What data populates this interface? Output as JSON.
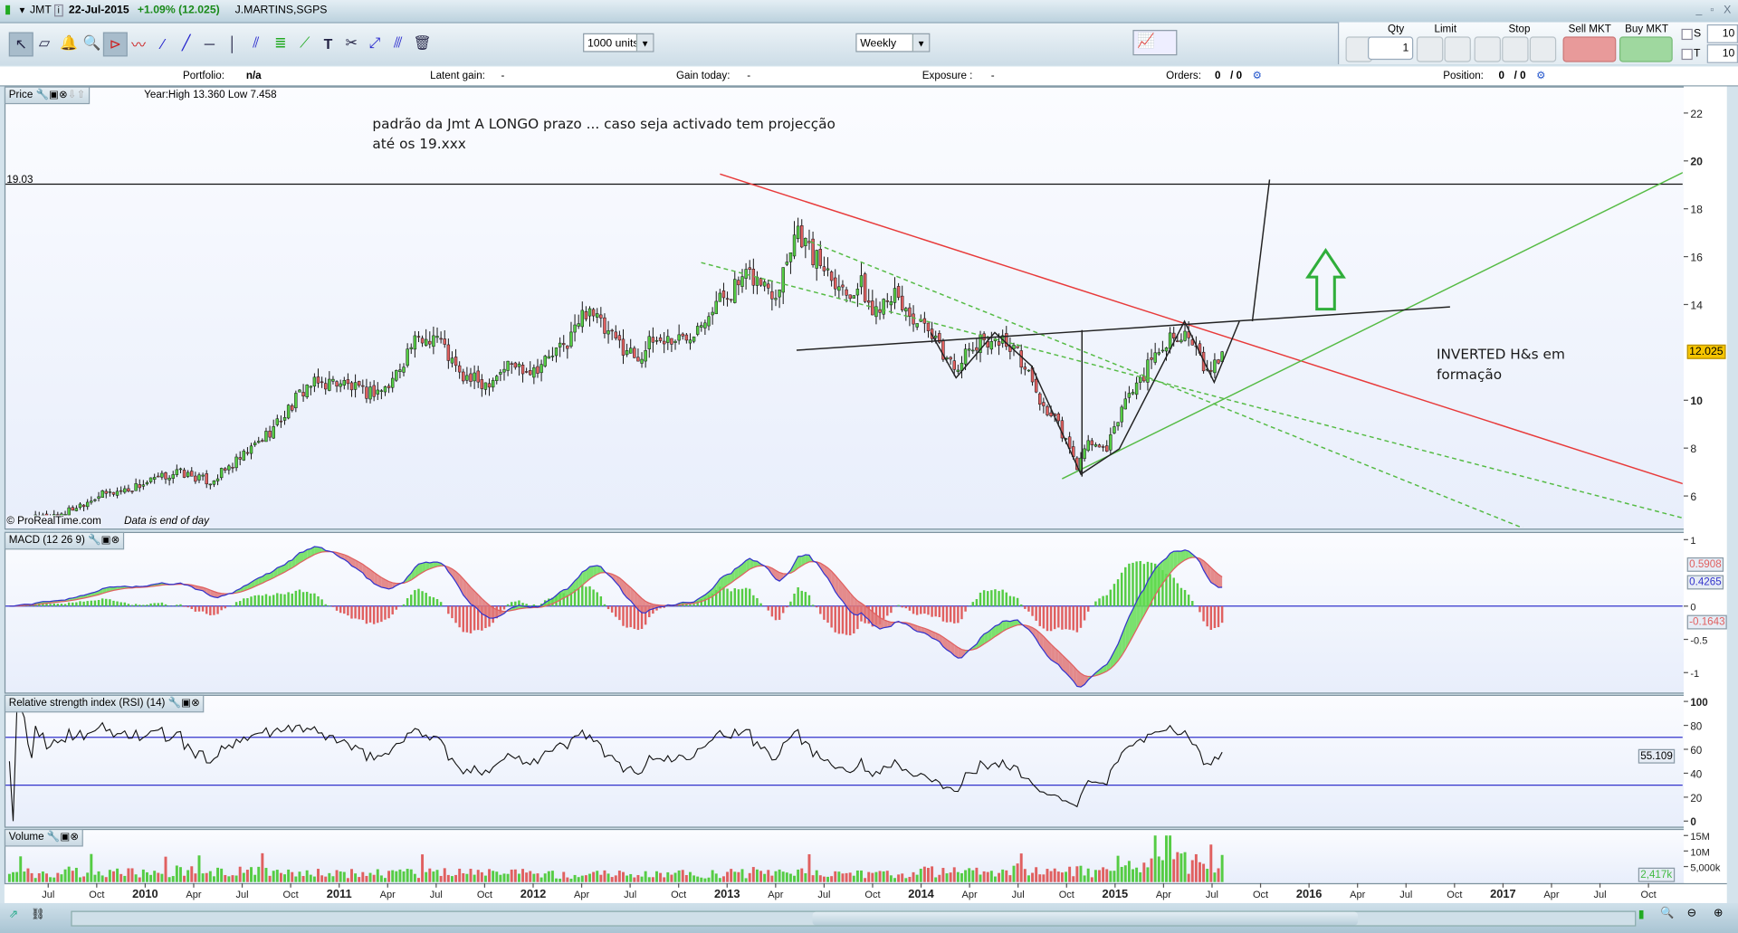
{
  "window": {
    "symbol": "JMT",
    "date": "22-Jul-2015",
    "change": "+1.09% (12.025)",
    "name": "J.MARTINS,SGPS",
    "minimize": "_",
    "restore": "▫",
    "close": "X"
  },
  "toolbar": {
    "units": "1000 units",
    "period": "Weekly"
  },
  "trade": {
    "qty_label": "Qty",
    "qty": "1",
    "limit_label": "Limit",
    "stop_label": "Stop",
    "sell_label": "Sell MKT",
    "buy_label": "Buy MKT",
    "s_label": "S",
    "s_value": "10",
    "t_label": "T",
    "t_value": "10"
  },
  "info": {
    "portfolio_label": "Portfolio:",
    "portfolio": "n/a",
    "latent_label": "Latent gain:",
    "latent": "-",
    "gain_label": "Gain today:",
    "gain": "-",
    "exposure_label": "Exposure :",
    "exposure": "-",
    "orders_label": "Orders:",
    "orders": "0",
    "orders_sep": "/ 0",
    "position_label": "Position:",
    "position": "0",
    "position_sep": "/ 0"
  },
  "price_panel": {
    "title": "Price",
    "year_range": "Year:High 13.360 Low 7.458",
    "copyright": "© ProRealTime.com",
    "eod": "Data is end of day",
    "level_label": "19.03",
    "note1_line1": "padrão da Jmt A LONGO prazo  ... caso seja activado tem projecção",
    "note1_line2": "até os 19.xxx",
    "note2_line1": "INVERTED H&s em",
    "note2_line2": "formação",
    "last_price": "12.025"
  },
  "macd_panel": {
    "title": "MACD (12 26 9)",
    "signal_value": "0.5908",
    "macd_value": "0.4265",
    "hist_value": "-0.1643"
  },
  "rsi_panel": {
    "title": "Relative strength index (RSI) (14)",
    "value": "55.109"
  },
  "volume_panel": {
    "title": "Volume",
    "value": "2,417k"
  },
  "chart_data": [
    {
      "type": "candlestick",
      "timeframe": "weekly",
      "price_axis": {
        "ticks": [
          "22",
          "20",
          "18",
          "16",
          "14",
          "10",
          "8",
          "6"
        ],
        "range": [
          5,
          23
        ]
      },
      "close_keypoints": [
        [
          "2009-05-01",
          4.9
        ],
        [
          "2009-08-01",
          5.3
        ],
        [
          "2009-10-01",
          6.0
        ],
        [
          "2009-12-01",
          6.3
        ],
        [
          "2010-03-01",
          7.0
        ],
        [
          "2010-05-01",
          6.6
        ],
        [
          "2010-07-01",
          7.6
        ],
        [
          "2010-09-01",
          8.9
        ],
        [
          "2010-11-01",
          10.6
        ],
        [
          "2011-01-01",
          10.8
        ],
        [
          "2011-02-15",
          10.3
        ],
        [
          "2011-04-01",
          10.5
        ],
        [
          "2011-05-15",
          12.3
        ],
        [
          "2011-07-01",
          12.8
        ],
        [
          "2011-08-15",
          11.0
        ],
        [
          "2011-10-01",
          10.7
        ],
        [
          "2011-11-15",
          11.5
        ],
        [
          "2012-01-01",
          11.3
        ],
        [
          "2012-03-01",
          12.3
        ],
        [
          "2012-04-15",
          14.0
        ],
        [
          "2012-05-15",
          12.8
        ],
        [
          "2012-07-15",
          11.8
        ],
        [
          "2012-08-15",
          12.5
        ],
        [
          "2012-10-15",
          12.6
        ],
        [
          "2012-11-15",
          13.5
        ],
        [
          "2013-01-01",
          14.5
        ],
        [
          "2013-02-15",
          15.2
        ],
        [
          "2013-04-01",
          14.5
        ],
        [
          "2013-05-10",
          17.3
        ],
        [
          "2013-06-10",
          16.0
        ],
        [
          "2013-07-10",
          15.5
        ],
        [
          "2013-08-10",
          14.5
        ],
        [
          "2013-09-10",
          14.8
        ],
        [
          "2013-10-01",
          13.6
        ],
        [
          "2013-11-01",
          14.6
        ],
        [
          "2013-12-01",
          13.8
        ],
        [
          "2014-02-01",
          12.3
        ],
        [
          "2014-03-01",
          11.4
        ],
        [
          "2014-05-01",
          12.6
        ],
        [
          "2014-06-15",
          12.4
        ],
        [
          "2014-07-15",
          11.4
        ],
        [
          "2014-08-15",
          9.8
        ],
        [
          "2014-09-15",
          9.0
        ],
        [
          "2014-10-20",
          7.2
        ],
        [
          "2014-11-15",
          8.3
        ],
        [
          "2014-12-15",
          7.8
        ],
        [
          "2015-01-15",
          9.8
        ],
        [
          "2015-02-15",
          10.8
        ],
        [
          "2015-03-15",
          11.8
        ],
        [
          "2015-04-20",
          12.9
        ],
        [
          "2015-05-20",
          12.5
        ],
        [
          "2015-06-25",
          11.0
        ],
        [
          "2015-07-22",
          12.025
        ]
      ],
      "horizontal_level": 19.03,
      "trendlines": [
        {
          "color": "#e83a3a",
          "style": "solid",
          "points": [
            [
              "2012-12-18",
              19.45
            ],
            [
              "2017-12-08",
              6.49
            ]
          ]
        },
        {
          "color": "#55bb44",
          "style": "solid",
          "points": [
            [
              "2014-09-23",
              6.72
            ],
            [
              "2017-12-08",
              19.55
            ]
          ]
        },
        {
          "color": "#55bb44",
          "style": "dashed",
          "points": [
            [
              "2012-11-13",
              15.75
            ],
            [
              "2017-12-08",
              5.06
            ]
          ]
        },
        {
          "color": "#55bb44",
          "style": "dashed",
          "points": [
            [
              "2013-06-05",
              16.63
            ],
            [
              "2017-02-15",
              4.6
            ]
          ]
        },
        {
          "color": "#222222",
          "style": "solid",
          "points": [
            [
              "2013-05-10",
              12.09
            ],
            [
              "2016-09-23",
              13.9
            ]
          ]
        },
        {
          "color": "#222222",
          "style": "solid",
          "points": [
            [
              "2014-10-30",
              12.93
            ],
            [
              "2014-10-30",
              6.81
            ]
          ]
        },
        {
          "color": "#222222",
          "style": "solid",
          "points": [
            [
              "2014-01-19",
              12.83
            ],
            [
              "2014-03-06",
              10.94
            ],
            [
              "2014-05-18",
              12.83
            ],
            [
              "2014-07-26",
              11.44
            ],
            [
              "2014-10-28",
              6.91
            ],
            [
              "2015-01-09",
              7.97
            ],
            [
              "2015-05-10",
              13.3
            ],
            [
              "2015-07-05",
              10.75
            ],
            [
              "2015-08-22",
              13.3
            ]
          ]
        },
        {
          "color": "#222222",
          "style": "solid",
          "points": [
            [
              "2015-09-16",
              13.3
            ],
            [
              "2015-10-18",
              19.22
            ]
          ]
        }
      ],
      "arrow": {
        "direction": "up",
        "color": "#2fae3a"
      },
      "colors": {
        "up": "#55cc44",
        "down": "#e06060"
      }
    },
    {
      "type": "line",
      "name": "MACD (12 26 9)",
      "axis_ticks": [
        "1",
        "0",
        "-0.5",
        "-1"
      ],
      "colors": {
        "macd": "#3333cc",
        "signal": "#e06060",
        "hist_up": "#55cc44",
        "hist_down": "#e06060"
      }
    },
    {
      "type": "line",
      "name": "Relative strength index (RSI) (14)",
      "axis_ticks": [
        "100",
        "80",
        "60",
        "40",
        "20",
        "0"
      ],
      "levels": [
        70,
        30
      ]
    },
    {
      "type": "bar",
      "name": "Volume",
      "axis_ticks": [
        "15M",
        "10M",
        "5,000k"
      ],
      "volume_level_m": {
        "2009": 3.2,
        "2010": 3.4,
        "2011": 3.0,
        "2012": 2.6,
        "2013": 3.0,
        "2014": 3.6,
        "2015": 6.5
      }
    },
    {
      "type": "time_axis",
      "ticks": [
        [
          "Jul",
          "2009-07"
        ],
        [
          "Oct",
          "2009-10"
        ],
        [
          "2010",
          "2010-01"
        ],
        [
          "Apr",
          "2010-04"
        ],
        [
          "Jul",
          "2010-07"
        ],
        [
          "Oct",
          "2010-10"
        ],
        [
          "2011",
          "2011-01"
        ],
        [
          "Apr",
          "2011-04"
        ],
        [
          "Jul",
          "2011-07"
        ],
        [
          "Oct",
          "2011-10"
        ],
        [
          "2012",
          "2012-01"
        ],
        [
          "Apr",
          "2012-04"
        ],
        [
          "Jul",
          "2012-07"
        ],
        [
          "Oct",
          "2012-10"
        ],
        [
          "2013",
          "2013-01"
        ],
        [
          "Apr",
          "2013-04"
        ],
        [
          "Jul",
          "2013-07"
        ],
        [
          "Oct",
          "2013-10"
        ],
        [
          "2014",
          "2014-01"
        ],
        [
          "Apr",
          "2014-04"
        ],
        [
          "Jul",
          "2014-07"
        ],
        [
          "Oct",
          "2014-10"
        ],
        [
          "2015",
          "2015-01"
        ],
        [
          "Apr",
          "2015-04"
        ],
        [
          "Jul",
          "2015-07"
        ],
        [
          "Oct",
          "2015-10"
        ],
        [
          "2016",
          "2016-01"
        ],
        [
          "Apr",
          "2016-04"
        ],
        [
          "Jul",
          "2016-07"
        ],
        [
          "Oct",
          "2016-10"
        ],
        [
          "2017",
          "2017-01"
        ],
        [
          "Apr",
          "2017-04"
        ],
        [
          "Jul",
          "2017-07"
        ],
        [
          "Oct",
          "2017-10"
        ]
      ]
    }
  ]
}
